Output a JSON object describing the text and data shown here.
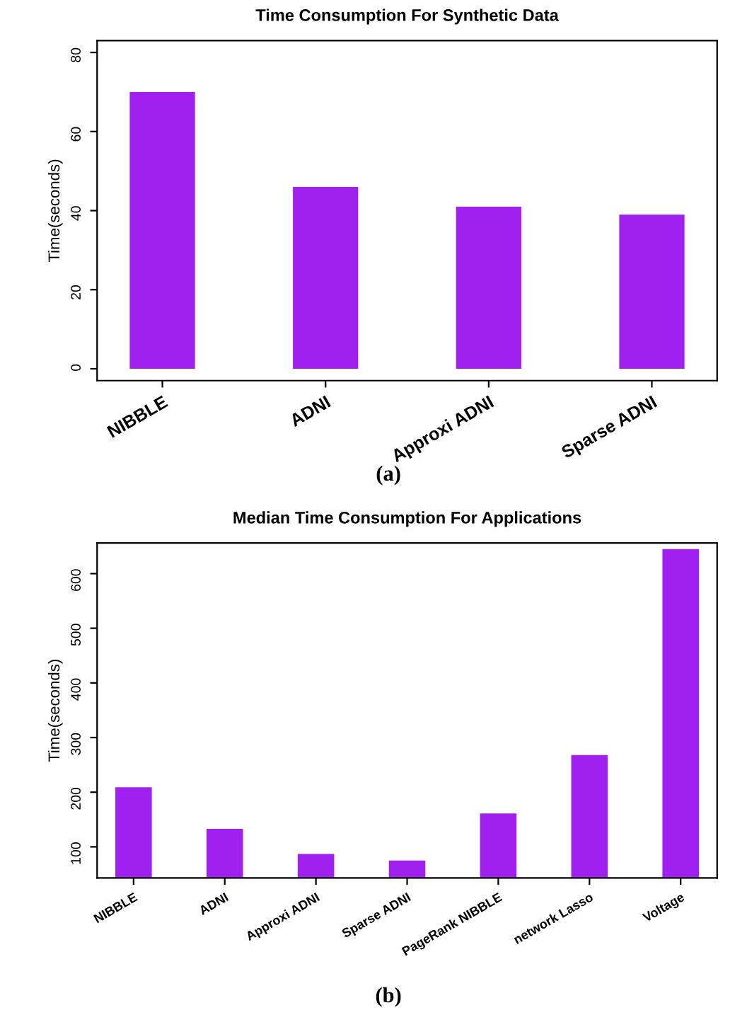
{
  "chart_data": [
    {
      "type": "bar",
      "title": "Time Consumption For Synthetic Data",
      "ylabel": "Time(seconds)",
      "categories": [
        "NIBBLE",
        "ADNI",
        "Approxi ADNI",
        "Sparse ADNI"
      ],
      "series": [
        {
          "color": "#a020f0",
          "values": [
            70,
            46,
            41,
            39
          ]
        }
      ],
      "ylim": [
        -3,
        83
      ],
      "yticks": [
        0,
        20,
        40,
        60,
        80
      ],
      "grid": false,
      "annotations": [
        "(a)"
      ]
    },
    {
      "type": "bar",
      "title": "Median Time Consumption For Applications",
      "ylabel": "Time(seconds)",
      "categories": [
        "NIBBLE",
        "ADNI",
        "Approxi ADNI",
        "Sparse ADNI",
        "PageRank NIBBLE",
        "network Lasso",
        "Voltage"
      ],
      "series": [
        {
          "color": "#a020f0",
          "values": [
            209,
            133,
            87,
            75,
            161,
            268,
            645
          ]
        }
      ],
      "ylim": [
        43,
        656
      ],
      "yticks": [
        100,
        200,
        300,
        400,
        500,
        600
      ],
      "grid": false,
      "annotations": [
        "(b)"
      ]
    }
  ]
}
